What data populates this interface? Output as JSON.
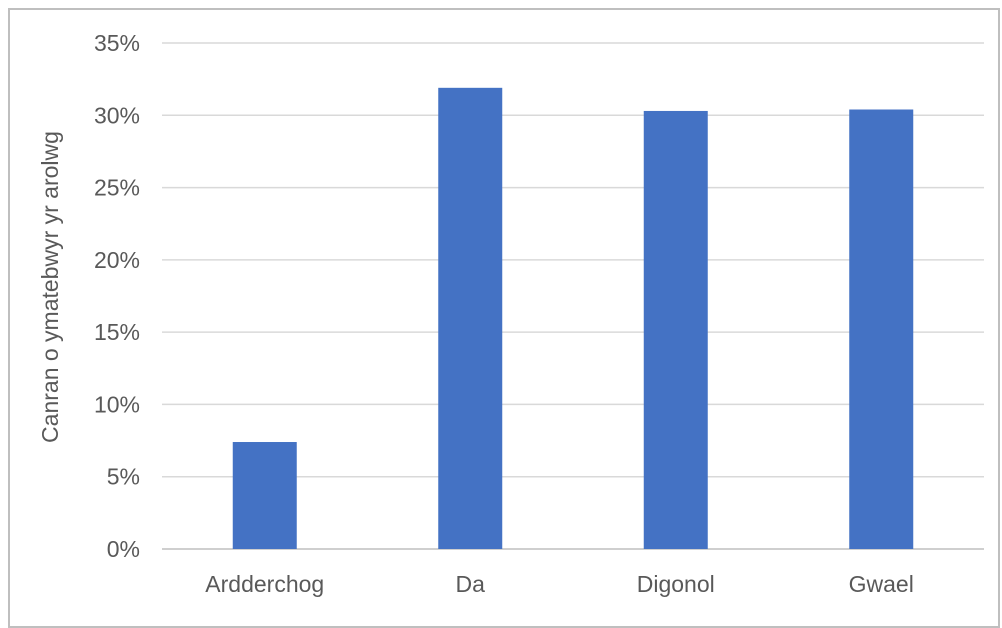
{
  "chart_data": {
    "type": "bar",
    "title": "",
    "xlabel": "",
    "ylabel": "Canran o ymatebwyr yr arolwg",
    "categories": [
      "Ardderchog",
      "Da",
      "Digonol",
      "Gwael"
    ],
    "values": [
      7.4,
      31.9,
      30.3,
      30.4
    ],
    "ylim": [
      0,
      35
    ],
    "y_ticks": [
      0,
      5,
      10,
      15,
      20,
      25,
      30,
      35
    ],
    "y_tick_labels": [
      "0%",
      "5%",
      "10%",
      "15%",
      "20%",
      "25%",
      "30%",
      "35%"
    ],
    "grid": true,
    "legend": "none",
    "bar_color": "#4472C4",
    "grid_color": "#d9d9d9",
    "text_color": "#595959"
  }
}
